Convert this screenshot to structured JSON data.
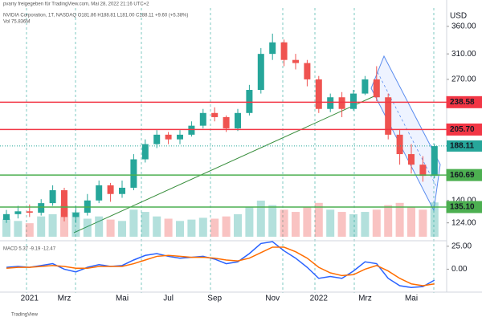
{
  "chart_data": {
    "type": "candlestick",
    "header": "pvarry freigegeben für TradingView.com, Mai 28, 2022 21:16 UTC+2",
    "title": "NVIDIA Corporation, 1T, NASDAQ  O181.86 H188.81 L181.00 C188.11 +9.60 (+5.38%)",
    "volume_label": "Vol 75.836M",
    "macd_label": "MACD 5.37 -9.19 -12.47",
    "currency": "USD",
    "footer": "TradingView",
    "categories": [
      null,
      null,
      "2021",
      null,
      null,
      "Mrz",
      null,
      null,
      null,
      null,
      "Mai",
      null,
      null,
      null,
      "Jul",
      null,
      null,
      null,
      "Sep",
      null,
      null,
      null,
      null,
      "Nov",
      null,
      null,
      null,
      "2022",
      null,
      null,
      null,
      "Mrz",
      null,
      null,
      null,
      "Mai",
      null,
      null
    ],
    "open": [
      126,
      130,
      132,
      131,
      138,
      148,
      128,
      131,
      140,
      152,
      145,
      150,
      175,
      190,
      200,
      195,
      200,
      210,
      225,
      220,
      207,
      225,
      255,
      310,
      330,
      300,
      295,
      270,
      230,
      245,
      230,
      250,
      270,
      245,
      200,
      180,
      170,
      160
    ],
    "high": [
      133,
      136,
      137,
      141,
      152,
      150,
      136,
      145,
      156,
      154,
      156,
      180,
      195,
      205,
      203,
      205,
      215,
      230,
      232,
      222,
      230,
      262,
      320,
      346,
      335,
      310,
      300,
      275,
      250,
      252,
      255,
      275,
      290,
      250,
      205,
      190,
      178,
      190
    ],
    "low": [
      124,
      127,
      128,
      129,
      136,
      125,
      124,
      129,
      138,
      139,
      142,
      148,
      172,
      186,
      190,
      190,
      198,
      207,
      215,
      203,
      204,
      222,
      250,
      300,
      290,
      285,
      260,
      225,
      226,
      220,
      228,
      248,
      240,
      195,
      170,
      162,
      155,
      158
    ],
    "close": [
      130,
      132,
      131,
      138,
      148,
      128,
      131,
      140,
      152,
      145,
      150,
      175,
      190,
      200,
      195,
      200,
      210,
      225,
      220,
      207,
      225,
      255,
      310,
      330,
      300,
      295,
      270,
      230,
      245,
      230,
      250,
      270,
      245,
      200,
      180,
      170,
      160,
      188
    ],
    "volume": [
      40,
      35,
      30,
      45,
      50,
      70,
      55,
      40,
      45,
      38,
      35,
      60,
      55,
      45,
      40,
      35,
      38,
      42,
      40,
      45,
      50,
      65,
      80,
      70,
      60,
      55,
      65,
      75,
      60,
      55,
      50,
      55,
      60,
      70,
      75,
      65,
      60,
      76
    ],
    "up_color": "#26a69a",
    "down_color": "#ef5350",
    "ylim": [
      115,
      389
    ],
    "log_scale": true,
    "yticks": [
      {
        "value": 124,
        "label": "124.00"
      },
      {
        "value": 140,
        "label": "140.00"
      },
      {
        "value": 270,
        "label": "270.00"
      },
      {
        "value": 310,
        "label": "310.00"
      },
      {
        "value": 360,
        "label": "360.00"
      }
    ],
    "levels": [
      {
        "value": 238.58,
        "label": "238.58",
        "color": "#f23645"
      },
      {
        "value": 205.7,
        "label": "205.70",
        "color": "#f23645"
      },
      {
        "value": 160.69,
        "label": "160.69",
        "color": "#4caf50"
      },
      {
        "value": 135.1,
        "label": "135.10",
        "color": "#4caf50"
      }
    ],
    "last_price": {
      "value": 188.11,
      "label": "188.11",
      "color": "#26a69a"
    },
    "macd": {
      "ylim": [
        -25,
        31
      ],
      "yticks": [
        {
          "value": 25,
          "label": "25.00"
        },
        {
          "value": 0,
          "label": "0.00"
        }
      ],
      "series": [
        {
          "color": "#2962ff",
          "values": [
            2,
            3,
            2,
            4,
            6,
            0,
            -3,
            2,
            5,
            3,
            4,
            10,
            15,
            17,
            14,
            12,
            13,
            14,
            11,
            6,
            8,
            17,
            28,
            30,
            20,
            12,
            2,
            -10,
            -8,
            -10,
            -2,
            8,
            6,
            -10,
            -18,
            -20,
            -19,
            -12
          ]
        },
        {
          "color": "#ff6d00",
          "values": [
            1,
            2,
            2,
            3,
            4,
            3,
            1,
            1,
            3,
            3,
            3,
            6,
            10,
            14,
            15,
            14,
            13,
            13,
            12,
            10,
            9,
            12,
            18,
            24,
            24,
            19,
            12,
            2,
            -4,
            -7,
            -6,
            0,
            4,
            -2,
            -10,
            -16,
            -18,
            -16
          ]
        }
      ]
    }
  }
}
